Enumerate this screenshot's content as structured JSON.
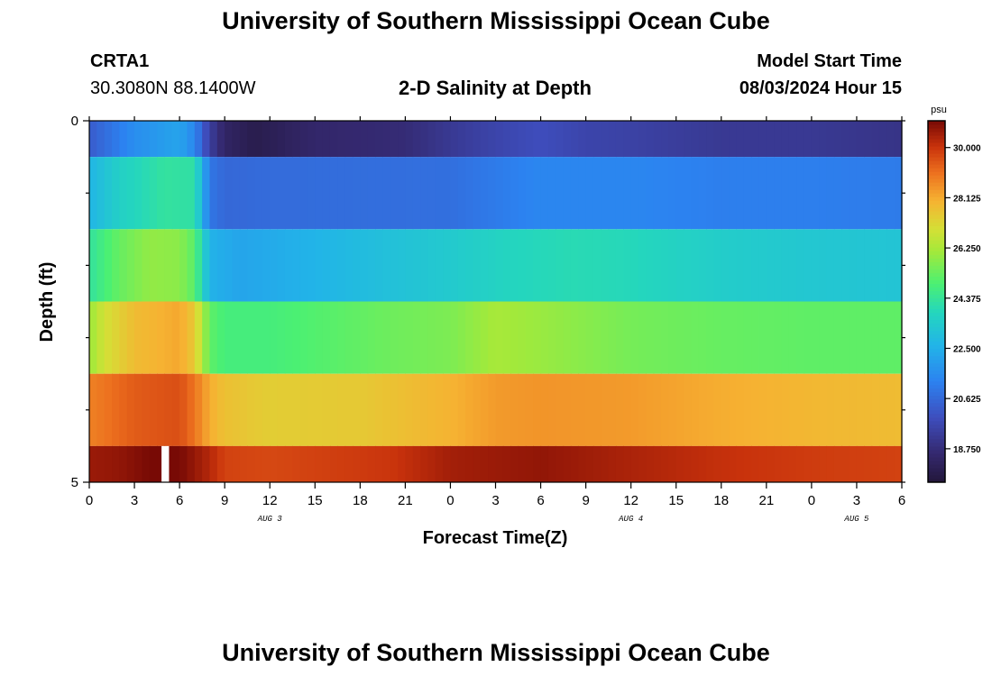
{
  "header": {
    "title": "University of Southern Mississippi Ocean Cube",
    "station_id": "CRTA1",
    "station_coords": "30.3080N  88.1400W",
    "plot_title": "2-D Salinity at Depth",
    "model_start_label": "Model Start Time",
    "model_start_value": "08/03/2024 Hour 15"
  },
  "footer": {
    "title": "University of Southern Mississippi Ocean Cube"
  },
  "chart_data": {
    "type": "heatmap",
    "title": "2-D Salinity at Depth",
    "xlabel": "Forecast Time(Z)",
    "ylabel": "Depth (ft)",
    "x_hours_range": [
      0,
      54
    ],
    "y_range": [
      0,
      5
    ],
    "y_tick_labels": [
      "0",
      "5"
    ],
    "x_tick_labels": [
      "0",
      "3",
      "6",
      "9",
      "12",
      "15",
      "18",
      "21",
      "0",
      "3",
      "6",
      "9",
      "12",
      "15",
      "18",
      "21",
      "0",
      "3",
      "6"
    ],
    "day_labels": [
      "AUG 3",
      "AUG 4",
      "AUG 5"
    ],
    "colorbar": {
      "unit": "psu",
      "range": [
        17.5,
        31.0
      ],
      "tick_values": [
        18.75,
        20.625,
        22.5,
        24.375,
        26.25,
        28.125,
        30.0
      ],
      "tick_labels": [
        "18.750",
        "20.625",
        "22.500",
        "24.375",
        "26.250",
        "28.125",
        "30.000"
      ]
    },
    "layers": [
      {
        "depth_from": 0,
        "depth_to": 0.5,
        "x_hours": [
          0,
          3,
          6,
          7,
          8,
          9,
          11,
          15,
          21,
          24,
          27,
          30,
          33,
          36,
          42,
          48,
          54
        ],
        "values": [
          20.3,
          21.6,
          22.2,
          21.4,
          19.4,
          18.4,
          17.9,
          18.5,
          18.7,
          19.2,
          19.6,
          19.9,
          19.6,
          19.5,
          19.2,
          19.2,
          19.0
        ]
      },
      {
        "depth_from": 0.5,
        "depth_to": 1.5,
        "x_hours": [
          0,
          2,
          5,
          7,
          8,
          9,
          12,
          24,
          30,
          36,
          42,
          48,
          54
        ],
        "values": [
          22.7,
          23.6,
          24.3,
          24.2,
          21.0,
          20.6,
          20.7,
          20.8,
          21.4,
          21.4,
          21.2,
          21.2,
          21.1
        ]
      },
      {
        "depth_from": 1.5,
        "depth_to": 2.5,
        "x_hours": [
          0,
          2,
          4,
          6,
          7,
          8,
          10,
          18,
          24,
          28,
          32,
          36,
          42,
          48,
          54
        ],
        "values": [
          24.3,
          25.3,
          25.9,
          25.8,
          25.1,
          22.6,
          22.2,
          22.9,
          23.4,
          23.8,
          24.0,
          23.9,
          23.5,
          23.3,
          23.2
        ]
      },
      {
        "depth_from": 2.5,
        "depth_to": 3.5,
        "x_hours": [
          0,
          1,
          3,
          6,
          7,
          8,
          9,
          12,
          20,
          24,
          27,
          30,
          36,
          42,
          48,
          54
        ],
        "values": [
          26.0,
          26.9,
          27.8,
          28.2,
          27.5,
          25.2,
          24.8,
          24.8,
          25.4,
          25.6,
          26.2,
          26.0,
          25.5,
          25.3,
          25.2,
          25.2
        ]
      },
      {
        "depth_from": 3.5,
        "depth_to": 4.5,
        "x_hours": [
          0,
          3,
          6,
          7,
          8,
          9,
          12,
          18,
          24,
          27,
          30,
          36,
          42,
          48,
          54
        ],
        "values": [
          28.8,
          29.4,
          29.6,
          29.0,
          28.1,
          27.7,
          27.4,
          27.5,
          28.0,
          28.4,
          28.5,
          28.4,
          28.1,
          27.9,
          27.8
        ]
      },
      {
        "depth_from": 4.5,
        "depth_to": 5,
        "x_hours": [
          0,
          2,
          4,
          5,
          6,
          8,
          9,
          12,
          20,
          24,
          27,
          30,
          36,
          42,
          48,
          54
        ],
        "values": [
          30.6,
          30.7,
          31.0,
          31.0,
          31.0,
          30.3,
          29.8,
          29.7,
          30.0,
          30.5,
          30.6,
          30.7,
          30.4,
          30.1,
          29.9,
          29.8
        ]
      }
    ],
    "missing_intervals_hours": [
      [
        4.8,
        5.3
      ]
    ]
  }
}
